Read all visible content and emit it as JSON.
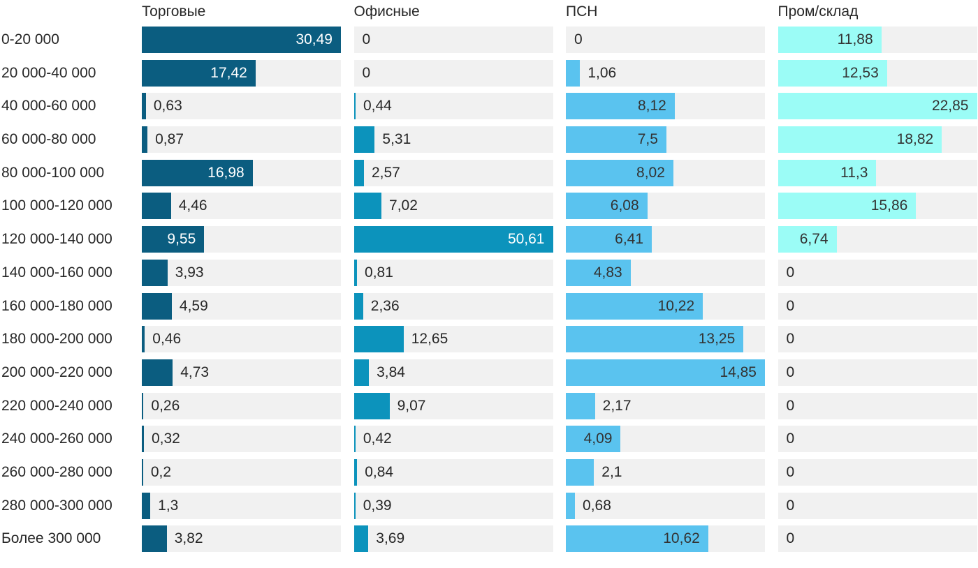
{
  "chart_data": {
    "type": "bar",
    "orientation": "horizontal",
    "value_format": "comma-decimal",
    "grid": false,
    "legend": "column-headers-top",
    "track_color": "#f1f1f1",
    "text_color": "#272727",
    "categories": [
      "0-20 000",
      "20 000-40 000",
      "40 000-60 000",
      "60 000-80 000",
      "80 000-100 000",
      "100 000-120 000",
      "120 000-140 000",
      "140 000-160 000",
      "160 000-180 000",
      "180 000-200 000",
      "200 000-220 000",
      "220 000-240 000",
      "240 000-260 000",
      "260 000-280 000",
      "280 000-300 000",
      "Более 300 000"
    ],
    "series": [
      {
        "name": "Торговые",
        "color": "#0b5d80",
        "inside_label_color": "#ffffff",
        "outside_label_color": "#272727",
        "axis_max": 30.49,
        "values": [
          30.49,
          17.42,
          0.63,
          0.87,
          16.98,
          4.46,
          9.55,
          3.93,
          4.59,
          0.46,
          4.73,
          0.26,
          0.32,
          0.2,
          1.3,
          3.82
        ],
        "labels": [
          "30,49",
          "17,42",
          "0,63",
          "0,87",
          "16,98",
          "4,46",
          "9,55",
          "3,93",
          "4,59",
          "0,46",
          "4,73",
          "0,26",
          "0,32",
          "0,2",
          "1,3",
          "3,82"
        ]
      },
      {
        "name": "Офисные",
        "color": "#0c93bc",
        "inside_label_color": "#ffffff",
        "outside_label_color": "#272727",
        "axis_max": 50.61,
        "values": [
          0,
          0,
          0.44,
          5.31,
          2.57,
          7.02,
          50.61,
          0.81,
          2.36,
          12.65,
          3.84,
          9.07,
          0.42,
          0.84,
          0.39,
          3.69
        ],
        "labels": [
          "0",
          "0",
          "0,44",
          "5,31",
          "2,57",
          "7,02",
          "50,61",
          "0,81",
          "2,36",
          "12,65",
          "3,84",
          "9,07",
          "0,42",
          "0,84",
          "0,39",
          "3,69"
        ]
      },
      {
        "name": "ПСН",
        "color": "#5ac3ef",
        "inside_label_color": "#333333",
        "outside_label_color": "#272727",
        "axis_max": 14.85,
        "values": [
          0,
          1.06,
          8.12,
          7.5,
          8.02,
          6.08,
          6.41,
          4.83,
          10.22,
          13.25,
          14.85,
          2.17,
          4.09,
          2.1,
          0.68,
          10.62
        ],
        "labels": [
          "0",
          "1,06",
          "8,12",
          "7,5",
          "8,02",
          "6,08",
          "6,41",
          "4,83",
          "10,22",
          "13,25",
          "14,85",
          "2,17",
          "4,09",
          "2,1",
          "0,68",
          "10,62"
        ]
      },
      {
        "name": "Пром/склад",
        "color": "#9bfcf6",
        "inside_label_color": "#333333",
        "outside_label_color": "#272727",
        "axis_max": 22.85,
        "values": [
          11.88,
          12.53,
          22.85,
          18.82,
          11.3,
          15.86,
          6.74,
          0,
          0,
          0,
          0,
          0,
          0,
          0,
          0,
          0
        ],
        "labels": [
          "11,88",
          "12,53",
          "22,85",
          "18,82",
          "11,3",
          "15,86",
          "6,74",
          "0",
          "0",
          "0",
          "0",
          "0",
          "0",
          "0",
          "0",
          "0"
        ]
      }
    ]
  }
}
